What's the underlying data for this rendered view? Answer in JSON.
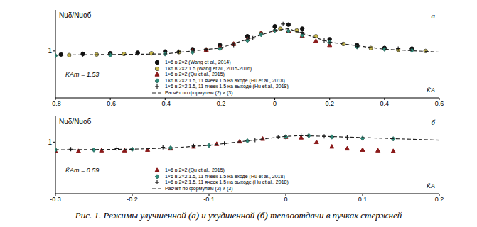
{
  "caption": "Рис. 1. Режимы улучшенной (а) и ухудшенной (б) теплоотдачи в пучках стержней",
  "chart_data": [
    {
      "type": "scatter",
      "panel_label": "а",
      "ylabel": "Nuδ/Nuоб",
      "xlabel": "K̄A",
      "annotation": "K̄Am = 1.53",
      "legend": "bottom",
      "xlim": [
        -0.8,
        0.6
      ],
      "xticks": [
        -0.8,
        -0.6,
        -0.4,
        -0.2,
        0,
        0.2,
        0.4,
        0.6
      ],
      "ylim": [
        0.2,
        1.7
      ],
      "yticks": [
        1
      ],
      "series": [
        {
          "name": "1×6 в 2×2 (Wang et al., 2014)",
          "type": "scatter",
          "marker": "circle",
          "color": "#111111",
          "x": [
            -0.78,
            -0.7,
            -0.6,
            -0.5,
            -0.4,
            -0.3,
            -0.2,
            -0.1,
            0.0,
            0.05,
            0.1,
            0.2,
            0.3,
            0.4,
            0.5
          ],
          "values": [
            0.94,
            0.95,
            0.96,
            0.97,
            0.99,
            1.03,
            1.1,
            1.25,
            1.42,
            1.45,
            1.38,
            1.2,
            1.1,
            1.05,
            1.04
          ]
        },
        {
          "name": "1×6 в 2×2 1.5 (Wang et al., 2015-2016)",
          "type": "scatter",
          "marker": "circle_open",
          "color": "#c8b84a",
          "x": [
            -0.75,
            -0.65,
            -0.55,
            -0.45,
            -0.35,
            -0.25,
            -0.15,
            -0.05,
            0.02,
            0.08,
            0.15,
            0.25,
            0.35,
            0.45,
            0.55
          ],
          "values": [
            0.93,
            0.94,
            0.95,
            0.96,
            0.98,
            1.02,
            1.12,
            1.3,
            1.38,
            1.35,
            1.25,
            1.12,
            1.05,
            1.02,
            1.0
          ]
        },
        {
          "name": "1×6 в 2×2 (Qu et al., 2015)",
          "type": "scatter",
          "marker": "triangle",
          "color": "#8b1a1a",
          "x": [
            -0.3,
            -0.25,
            -0.2,
            -0.15,
            -0.1,
            -0.05,
            0,
            0.05,
            0.1,
            0.15,
            0.2
          ],
          "values": [
            1.0,
            1.02,
            1.06,
            1.12,
            1.2,
            1.3,
            1.36,
            1.34,
            1.26,
            1.17,
            1.1
          ]
        },
        {
          "name": "1×6 в 2×2 1.5, 11 ячеек 1.5 на входе (Hu et al., 2018)",
          "type": "scatter",
          "marker": "diamond",
          "color": "#2e8b7a",
          "x": [
            -0.8,
            -0.6,
            -0.4,
            -0.3,
            -0.2,
            -0.1,
            -0.05,
            0,
            0.05,
            0.1,
            0.2,
            0.3,
            0.4,
            0.5
          ],
          "values": [
            0.92,
            0.93,
            0.95,
            0.98,
            1.04,
            1.18,
            1.28,
            1.35,
            1.34,
            1.27,
            1.15,
            1.07,
            1.03,
            1.01
          ]
        },
        {
          "name": "1×6 в 2×2 1.5, 11 ячеек 1.5 на выходе (Hu et al., 2018)",
          "type": "scatter",
          "marker": "cross",
          "color": "#111111",
          "x": [
            -0.7,
            -0.5,
            -0.35,
            -0.25,
            -0.15,
            -0.08,
            0,
            0.03,
            0.1,
            0.18,
            0.3,
            0.45
          ],
          "values": [
            0.94,
            0.96,
            0.99,
            1.03,
            1.1,
            1.22,
            1.4,
            1.46,
            1.32,
            1.18,
            1.08,
            1.04
          ]
        },
        {
          "name": "Расчёт по формулам (2) и (3)",
          "type": "line",
          "line_style": "dashed",
          "color": "#222222",
          "x": [
            -0.8,
            -0.4,
            -0.2,
            -0.1,
            0,
            0.05,
            0.1,
            0.2,
            0.4,
            0.6
          ],
          "values": [
            0.93,
            0.95,
            1.05,
            1.2,
            1.35,
            1.38,
            1.3,
            1.15,
            1.03,
            0.98
          ]
        }
      ]
    },
    {
      "type": "scatter",
      "panel_label": "б",
      "ylabel": "Nuδ/Nuоб",
      "xlabel": "K̄A",
      "annotation": "K̄Am = 0.59",
      "legend": "bottom",
      "xlim": [
        -0.3,
        0.2
      ],
      "xticks": [
        -0.3,
        -0.2,
        -0.1,
        0,
        0.1,
        0.2
      ],
      "ylim": [
        0.2,
        1.4
      ],
      "yticks": [
        1
      ],
      "series": [
        {
          "name": "1×6 в 2×2 (Qu et al., 2015)",
          "type": "scatter",
          "marker": "triangle",
          "color": "#8b1a1a",
          "x": [
            -0.3,
            -0.27,
            -0.24,
            -0.21,
            -0.18,
            -0.15,
            -0.12,
            -0.09,
            -0.06,
            -0.03,
            0,
            0.02,
            0.04,
            0.06,
            0.08,
            0.1,
            0.12,
            0.14
          ],
          "values": [
            0.86,
            0.86,
            0.87,
            0.87,
            0.88,
            0.9,
            0.93,
            0.97,
            1.01,
            1.05,
            1.08,
            1.07,
            1.0,
            0.93,
            0.9,
            0.88,
            0.87,
            0.86
          ]
        },
        {
          "name": "1×6 в 2×2 1.5, 11 ячеек 1.5 на входе (Hu et al., 2018)",
          "type": "scatter",
          "marker": "diamond",
          "color": "#2e8b7a",
          "x": [
            -0.3,
            -0.25,
            -0.2,
            -0.15,
            -0.1,
            -0.05,
            0,
            0.03,
            0.06,
            0.1,
            0.14
          ],
          "values": [
            0.88,
            0.88,
            0.89,
            0.91,
            0.95,
            1.02,
            1.08,
            1.1,
            1.08,
            1.06,
            1.05
          ]
        },
        {
          "name": "1×6 в 2×2 1.5, 11 ячеек 1.5 на выходе (Hu et al., 2018)",
          "type": "scatter",
          "marker": "cross",
          "color": "#111111",
          "x": [
            -0.28,
            -0.22,
            -0.16,
            -0.12,
            -0.08,
            -0.04,
            -0.01,
            0.02,
            0.05,
            0.08
          ],
          "values": [
            0.89,
            0.9,
            0.92,
            0.94,
            0.98,
            1.03,
            1.08,
            1.1,
            1.09,
            1.07
          ]
        },
        {
          "name": "Расчёт по формулам (2) и (3)",
          "type": "line",
          "line_style": "dashed",
          "color": "#222222",
          "x": [
            -0.3,
            -0.2,
            -0.15,
            -0.1,
            -0.05,
            0,
            0.02,
            0.05,
            0.1,
            0.15,
            0.2
          ],
          "values": [
            0.88,
            0.89,
            0.91,
            0.95,
            1.02,
            1.09,
            1.1,
            1.09,
            1.07,
            1.05,
            1.03
          ]
        }
      ]
    }
  ]
}
